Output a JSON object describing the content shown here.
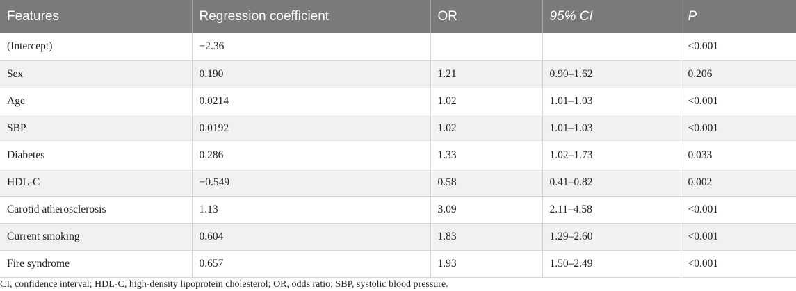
{
  "table": {
    "headers": [
      "Features",
      "Regression coefficient",
      "OR",
      "95% CI",
      "P"
    ],
    "rows": [
      [
        "(Intercept)",
        "−2.36",
        "",
        "",
        "<0.001"
      ],
      [
        "Sex",
        "0.190",
        "1.21",
        "0.90–1.62",
        "0.206"
      ],
      [
        "Age",
        "0.0214",
        "1.02",
        "1.01–1.03",
        "<0.001"
      ],
      [
        "SBP",
        "0.0192",
        "1.02",
        "1.01–1.03",
        "<0.001"
      ],
      [
        "Diabetes",
        "0.286",
        "1.33",
        "1.02–1.73",
        "0.033"
      ],
      [
        "HDL-C",
        "−0.549",
        "0.58",
        "0.41–0.82",
        "0.002"
      ],
      [
        "Carotid atherosclerosis",
        "1.13",
        "3.09",
        "2.11–4.58",
        "<0.001"
      ],
      [
        "Current smoking",
        "0.604",
        "1.83",
        "1.29–2.60",
        "<0.001"
      ],
      [
        "Fire syndrome",
        "0.657",
        "1.93",
        "1.50–2.49",
        "<0.001"
      ]
    ]
  },
  "footnote": "CI, confidence interval; HDL-C, high-density lipoprotein cholesterol; OR, odds ratio; SBP, systolic blood pressure.",
  "colors": {
    "header_bg": "#7a7a7a",
    "header_text": "#ffffff",
    "stripe_bg": "#f1f1f1"
  }
}
